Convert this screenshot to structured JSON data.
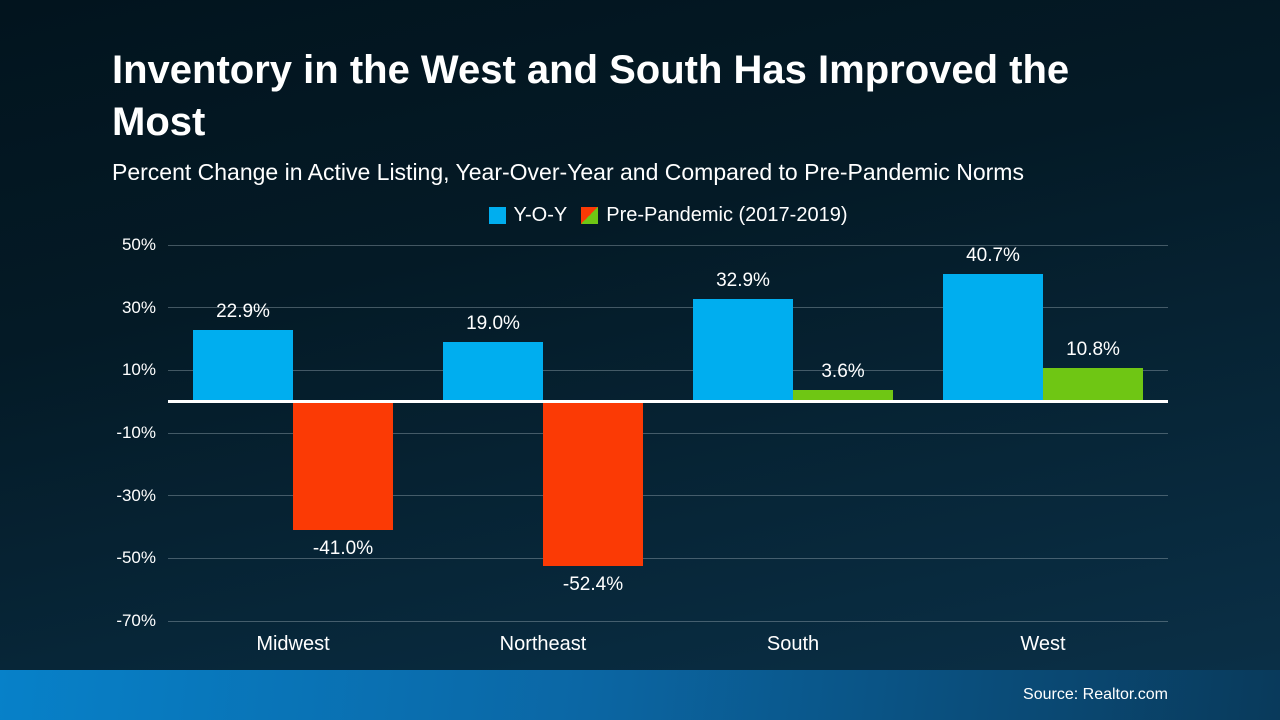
{
  "slide": {
    "title": "Inventory in the West and South Has Improved the Most",
    "subtitle": "Percent Change in Active Listing, Year-Over-Year and Compared to Pre-Pandemic Norms",
    "source": "Source: Realtor.com"
  },
  "legend": [
    {
      "label": "Y-O-Y",
      "swatch": "solid-blue"
    },
    {
      "label": "Pre-Pandemic (2017-2019)",
      "swatch": "split-orange-green"
    }
  ],
  "colors": {
    "yoy_blue": "#00AEEF",
    "pre_pandemic_negative": "#FB3A05",
    "pre_pandemic_positive": "#6FC614",
    "gridline": "rgba(155,172,182,0.42)",
    "zero_line": "#FFFFFF",
    "footer_left": "#0781C9",
    "footer_right": "#093A5B"
  },
  "chart_data": {
    "type": "bar",
    "title": "Inventory in the West and South Has Improved the Most",
    "subtitle": "Percent Change in Active Listing, Year-Over-Year and Compared to Pre-Pandemic Norms",
    "categories": [
      "Midwest",
      "Northeast",
      "South",
      "West"
    ],
    "series": [
      {
        "name": "Y-O-Y",
        "values": [
          22.9,
          19.0,
          32.9,
          40.7
        ]
      },
      {
        "name": "Pre-Pandemic (2017-2019)",
        "values": [
          -41.0,
          -52.4,
          3.6,
          10.8
        ]
      }
    ],
    "data_labels": {
      "Y-O-Y": [
        "22.9%",
        "19.0%",
        "32.9%",
        "40.7%"
      ],
      "Pre-Pandemic (2017-2019)": [
        "-41.0%",
        "-52.4%",
        "3.6%",
        "10.8%"
      ]
    },
    "xlabel": "",
    "ylabel": "",
    "ylim": [
      -70,
      50
    ],
    "ytick_labels": [
      "50%",
      "30%",
      "10%",
      "-10%",
      "-30%",
      "-50%",
      "-70%"
    ],
    "ytick_values": [
      50,
      30,
      10,
      -10,
      -30,
      -50,
      -70
    ],
    "grid": true,
    "legend_position": "top-center",
    "source": "Source: Realtor.com"
  }
}
